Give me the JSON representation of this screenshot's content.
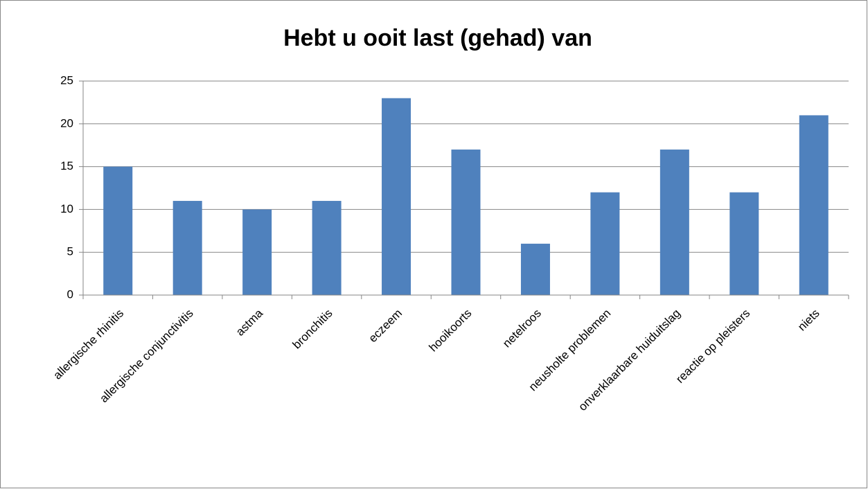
{
  "chart_data": {
    "type": "bar",
    "title": "Hebt u ooit last (gehad) van",
    "categories": [
      "allergische rhinitis",
      "allergische conjunctivitis",
      "astma",
      "bronchitis",
      "eczeem",
      "hooikoorts",
      "netelroos",
      "neusholte problemen",
      "onverklaarbare huiduitslag",
      "reactie op pleisters",
      "niets"
    ],
    "values": [
      15,
      11,
      10,
      11,
      23,
      17,
      6,
      12,
      17,
      12,
      21
    ],
    "color": "#4f81bd",
    "ylim": [
      0,
      25
    ],
    "yticks": [
      0,
      5,
      10,
      15,
      20,
      25
    ],
    "grid": true
  }
}
